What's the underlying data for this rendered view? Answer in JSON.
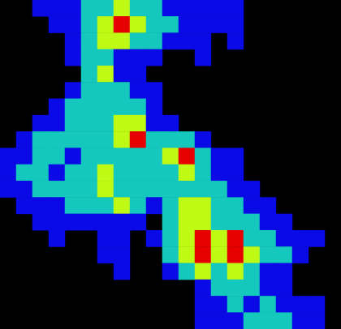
{
  "chart_data": {
    "type": "heatmap",
    "grid": false,
    "tick_labels": false,
    "cells": [
      [
        null,
        null,
        1,
        1,
        1,
        2,
        2,
        3,
        2,
        2,
        1,
        1,
        1,
        1,
        1,
        null,
        null,
        null,
        null,
        null,
        null
      ],
      [
        null,
        null,
        null,
        1,
        1,
        2,
        3,
        4,
        3,
        2,
        2,
        1,
        1,
        1,
        1,
        null,
        null,
        null,
        null,
        null,
        null
      ],
      [
        null,
        null,
        null,
        null,
        1,
        2,
        3,
        3,
        2,
        2,
        1,
        1,
        1,
        null,
        1,
        null,
        null,
        null,
        null,
        null,
        null
      ],
      [
        null,
        null,
        null,
        null,
        1,
        2,
        2,
        1,
        1,
        1,
        null,
        null,
        1,
        null,
        null,
        null,
        null,
        null,
        null,
        null,
        null
      ],
      [
        null,
        null,
        null,
        null,
        null,
        2,
        3,
        1,
        1,
        null,
        null,
        null,
        null,
        null,
        null,
        null,
        null,
        null,
        null,
        null,
        null
      ],
      [
        null,
        null,
        null,
        null,
        1,
        2,
        2,
        2,
        1,
        1,
        null,
        null,
        null,
        null,
        null,
        null,
        null,
        null,
        null,
        null,
        null
      ],
      [
        null,
        null,
        null,
        1,
        2,
        2,
        2,
        2,
        2,
        1,
        null,
        null,
        null,
        null,
        null,
        null,
        null,
        null,
        null,
        null,
        null
      ],
      [
        null,
        null,
        1,
        1,
        2,
        2,
        2,
        3,
        3,
        1,
        1,
        null,
        null,
        null,
        null,
        null,
        null,
        null,
        null,
        null,
        null
      ],
      [
        null,
        1,
        2,
        2,
        2,
        2,
        2,
        3,
        4,
        2,
        2,
        2,
        1,
        null,
        null,
        null,
        null,
        null,
        null,
        null,
        null
      ],
      [
        1,
        1,
        2,
        2,
        1,
        2,
        2,
        2,
        2,
        2,
        3,
        4,
        2,
        1,
        1,
        null,
        null,
        null,
        null,
        null,
        null
      ],
      [
        1,
        2,
        2,
        1,
        2,
        2,
        3,
        2,
        2,
        2,
        2,
        3,
        2,
        1,
        1,
        null,
        null,
        null,
        null,
        null,
        null
      ],
      [
        1,
        1,
        2,
        2,
        2,
        2,
        3,
        2,
        2,
        2,
        2,
        2,
        2,
        2,
        1,
        1,
        null,
        null,
        null,
        null,
        null
      ],
      [
        null,
        1,
        1,
        1,
        2,
        2,
        2,
        3,
        2,
        1,
        2,
        3,
        3,
        2,
        2,
        1,
        1,
        null,
        null,
        null,
        null
      ],
      [
        null,
        null,
        1,
        1,
        1,
        1,
        1,
        1,
        1,
        null,
        2,
        3,
        3,
        2,
        2,
        2,
        1,
        1,
        null,
        null,
        null
      ],
      [
        null,
        null,
        null,
        1,
        null,
        null,
        1,
        1,
        null,
        1,
        2,
        3,
        4,
        3,
        4,
        2,
        2,
        1,
        1,
        1,
        null
      ],
      [
        null,
        null,
        null,
        null,
        null,
        null,
        1,
        1,
        null,
        null,
        2,
        3,
        4,
        3,
        4,
        3,
        2,
        2,
        1,
        null,
        null
      ],
      [
        null,
        null,
        null,
        null,
        null,
        null,
        null,
        1,
        null,
        null,
        1,
        2,
        3,
        2,
        3,
        2,
        1,
        1,
        null,
        null,
        null
      ],
      [
        null,
        null,
        null,
        null,
        null,
        null,
        null,
        null,
        null,
        null,
        null,
        null,
        1,
        2,
        2,
        2,
        1,
        1,
        null,
        null,
        null
      ],
      [
        null,
        null,
        null,
        null,
        null,
        null,
        null,
        null,
        null,
        null,
        null,
        null,
        1,
        1,
        2,
        1,
        2,
        1,
        1,
        1,
        null
      ],
      [
        null,
        null,
        null,
        null,
        null,
        null,
        null,
        null,
        null,
        null,
        null,
        null,
        1,
        1,
        1,
        2,
        2,
        2,
        1,
        1,
        null
      ]
    ]
  }
}
